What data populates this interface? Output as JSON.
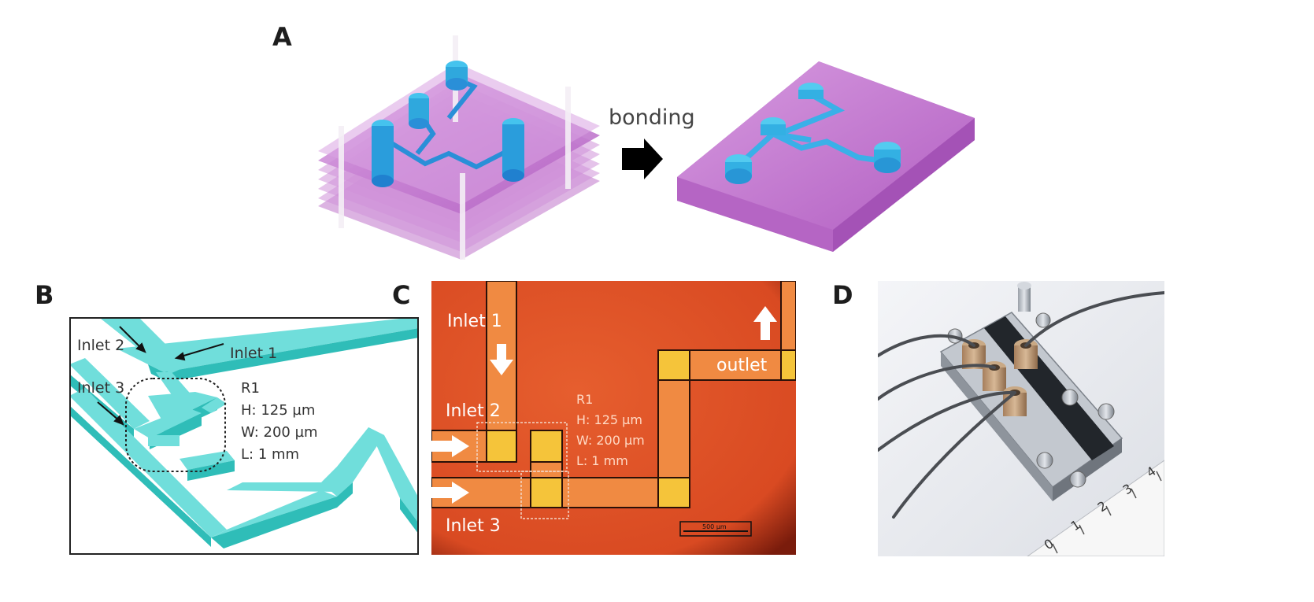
{
  "figure": {
    "panel_a": {
      "label": "A",
      "arrow_text": "bonding",
      "colors": {
        "layer": "#c77fcf",
        "layer_dark": "#a04fb0",
        "channel": "#3fb9e6",
        "channel_dark": "#1e7fd0",
        "pin": "#f1eef2"
      }
    },
    "panel_b": {
      "label": "B",
      "inlet1": "Inlet 1",
      "inlet2": "Inlet 2",
      "inlet3": "Inlet 3",
      "spec_name": "R1",
      "spec_h": "H: 125 µm",
      "spec_w": "W: 200 µm",
      "spec_l": "L: 1 mm",
      "colors": {
        "channel_top": "#6fe0dc",
        "channel_side": "#2fbdb8"
      }
    },
    "panel_c": {
      "label": "C",
      "inlet1": "Inlet 1",
      "inlet2": "Inlet 2",
      "inlet3": "Inlet 3",
      "outlet": "outlet",
      "spec_name": "R1",
      "spec_h": "H: 125 µm",
      "spec_w": "W: 200 µm",
      "spec_l": "L: 1 mm",
      "scale_bar": "500 µm",
      "colors": {
        "background": "#e4562a",
        "channel": "#f3883f",
        "node": "#f6c43a"
      }
    },
    "panel_d": {
      "label": "D",
      "ruler_ticks": [
        "0",
        "1",
        "2",
        "3",
        "4"
      ]
    }
  }
}
